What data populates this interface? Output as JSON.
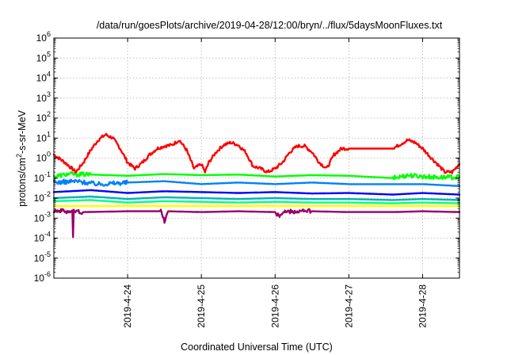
{
  "chart_data": {
    "type": "line",
    "title": "/data/run/goesPlots/archive/2019-04-28/12:00/bryn/../flux/5daysMoonFluxes.txt",
    "xlabel": "Coordinated Universal Time (UTC)",
    "ylabel": {
      "prefix": "protons/cm",
      "sup": "2",
      "suffix": "-s-sr-MeV"
    },
    "y_scale": "log",
    "ylim": [
      1e-06,
      1000000.0
    ],
    "xlim": [
      "2019-04-23 00:00",
      "2019-04-28 12:00"
    ],
    "y_ticks": [
      {
        "value": 1e-06,
        "base": "10",
        "exp": "-6"
      },
      {
        "value": 1e-05,
        "base": "10",
        "exp": "-5"
      },
      {
        "value": 0.0001,
        "base": "10",
        "exp": "-4"
      },
      {
        "value": 0.001,
        "base": "10",
        "exp": "-3"
      },
      {
        "value": 0.01,
        "base": "10",
        "exp": "-2"
      },
      {
        "value": 0.1,
        "base": "10",
        "exp": "-1"
      },
      {
        "value": 1,
        "base": "10",
        "exp": "0"
      },
      {
        "value": 10,
        "base": "10",
        "exp": "1"
      },
      {
        "value": 100,
        "base": "10",
        "exp": "2"
      },
      {
        "value": 1000.0,
        "base": "10",
        "exp": "3"
      },
      {
        "value": 10000.0,
        "base": "10",
        "exp": "4"
      },
      {
        "value": 100000.0,
        "base": "10",
        "exp": "5"
      },
      {
        "value": 1000000.0,
        "base": "10",
        "exp": "6"
      }
    ],
    "x_ticks": [
      "2019-4-24",
      "2019-4-25",
      "2019-4-26",
      "2019-4-27",
      "2019-4-28"
    ],
    "x_tick_days": [
      1,
      2,
      3,
      4,
      5
    ],
    "grid": true,
    "series": [
      {
        "color": "#ff0000",
        "x_days": [
          0.0,
          0.15,
          0.3,
          0.4,
          0.5,
          0.6,
          0.7,
          0.8,
          0.9,
          1.0,
          1.1,
          1.2,
          1.3,
          1.4,
          1.5,
          1.6,
          1.7,
          1.8,
          1.9,
          2.0,
          2.05,
          2.1,
          2.2,
          2.3,
          2.4,
          2.5,
          2.6,
          2.7,
          2.8,
          2.9,
          3.0,
          3.1,
          3.2,
          3.3,
          3.4,
          3.5,
          3.6,
          3.7,
          3.8,
          3.9,
          4.0,
          4.6,
          4.7,
          4.8,
          4.9,
          5.0,
          5.1,
          5.2,
          5.3,
          5.4,
          5.5
        ],
        "values": [
          1.5,
          0.6,
          0.2,
          0.6,
          2.5,
          8,
          15,
          10,
          3,
          0.6,
          0.3,
          0.6,
          1.5,
          3,
          4,
          4.5,
          8,
          2.5,
          0.3,
          0.5,
          0.2,
          0.6,
          2,
          4.5,
          6,
          4.5,
          2,
          0.4,
          0.3,
          0.2,
          0.3,
          0.6,
          2,
          4,
          4,
          2,
          0.6,
          0.3,
          1.5,
          3,
          3,
          3,
          5,
          8,
          6,
          3,
          1.2,
          0.5,
          0.2,
          0.2,
          0.5
        ]
      },
      {
        "color": "#00ff00",
        "x_days": [
          0.0,
          0.2,
          0.5,
          1.0,
          1.5,
          2.0,
          2.5,
          3.0,
          3.5,
          4.0,
          4.6,
          4.8,
          5.0,
          5.2,
          5.5
        ],
        "values": [
          0.12,
          0.16,
          0.15,
          0.13,
          0.16,
          0.14,
          0.15,
          0.12,
          0.14,
          0.13,
          0.1,
          0.14,
          0.12,
          0.11,
          0.11
        ]
      },
      {
        "color": "#0080ff",
        "x_days": [
          0.0,
          0.3,
          0.6,
          1.0,
          1.5,
          2.0,
          2.5,
          3.0,
          3.5,
          4.0,
          4.6,
          5.0,
          5.5
        ],
        "values": [
          0.06,
          0.07,
          0.05,
          0.06,
          0.07,
          0.05,
          0.06,
          0.05,
          0.06,
          0.05,
          0.05,
          0.05,
          0.04
        ]
      },
      {
        "color": "#0000ff",
        "x_days": [
          0.0,
          0.5,
          1.0,
          1.5,
          2.0,
          2.5,
          3.0,
          3.5,
          4.0,
          4.6,
          5.0,
          5.5
        ],
        "values": [
          0.02,
          0.025,
          0.018,
          0.022,
          0.02,
          0.018,
          0.02,
          0.017,
          0.018,
          0.015,
          0.018,
          0.015
        ]
      },
      {
        "color": "#00b4b4",
        "x_days": [
          0.0,
          0.5,
          1.0,
          1.5,
          2.0,
          2.5,
          3.0,
          3.5,
          4.0,
          4.6,
          5.0,
          5.5
        ],
        "values": [
          0.01,
          0.012,
          0.009,
          0.011,
          0.01,
          0.009,
          0.01,
          0.009,
          0.009,
          0.008,
          0.009,
          0.008
        ]
      },
      {
        "color": "#00ff80",
        "x_days": [
          0.0,
          0.5,
          1.0,
          1.5,
          2.0,
          2.5,
          3.0,
          3.5,
          4.0,
          4.6,
          5.0,
          5.5
        ],
        "values": [
          0.007,
          0.008,
          0.006,
          0.007,
          0.0065,
          0.006,
          0.0065,
          0.006,
          0.006,
          0.0055,
          0.006,
          0.0055
        ]
      },
      {
        "color": "#ffff00",
        "x_days": [
          0.0,
          1.0,
          2.0,
          3.0,
          4.0,
          5.0,
          5.5
        ],
        "values": [
          0.004,
          0.004,
          0.004,
          0.004,
          0.004,
          0.004,
          0.004
        ]
      },
      {
        "color": "#990066",
        "x_days": [
          0.0,
          0.15,
          0.25,
          0.26,
          0.27,
          0.4,
          1.0,
          1.45,
          1.5,
          1.55,
          2.0,
          2.5,
          3.0,
          3.05,
          3.1,
          3.5,
          4.0,
          4.6,
          5.0,
          5.5
        ],
        "values": [
          0.0025,
          0.0022,
          0.0022,
          0.0001,
          0.0022,
          0.002,
          0.0022,
          0.0022,
          0.0007,
          0.0022,
          0.002,
          0.0022,
          0.002,
          0.0012,
          0.002,
          0.0022,
          0.002,
          0.002,
          0.0022,
          0.002
        ]
      }
    ]
  }
}
